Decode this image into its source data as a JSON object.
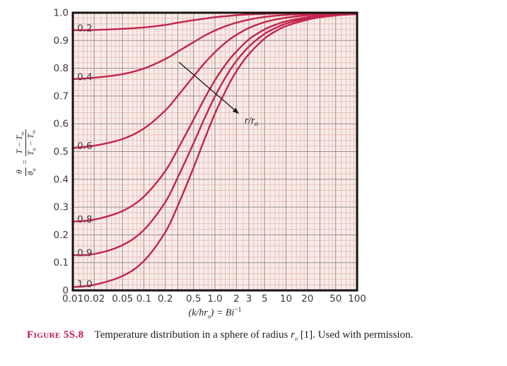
{
  "colors": {
    "curve": "#c2254e",
    "plot_bg": "#f8ece8",
    "grid_minor": "#e9c2bc",
    "grid_major": "#9d8f8c",
    "border": "#191113",
    "tick_text": "#3e3938",
    "curve_label_text": "#45403d",
    "annotation": "#1b1613",
    "figure_label": "#c2174c"
  },
  "chart_data": {
    "type": "line",
    "title": "",
    "xlabel": "(k/hr_o) = Bi^-1",
    "ylabel": "θ/θ_o = (T − T_∞)/(T_o − T_∞)",
    "x_scale": "log",
    "xlim": [
      0.01,
      100
    ],
    "ylim": [
      0,
      1
    ],
    "grid": {
      "h_minor_step": 0.02,
      "h_major_step": 0.1,
      "v_major_multipliers": [
        1,
        2,
        3,
        5
      ],
      "v_minor_multipliers": [
        1.2,
        1.4,
        1.6,
        1.8,
        2.5,
        3.5,
        4,
        4.5,
        6,
        7,
        8,
        9
      ]
    },
    "x_ticks": [
      {
        "v": 0.01,
        "label": "0.01"
      },
      {
        "v": 0.02,
        "label": "0.02"
      },
      {
        "v": 0.05,
        "label": "0.05"
      },
      {
        "v": 0.1,
        "label": "0.1"
      },
      {
        "v": 0.2,
        "label": "0.2"
      },
      {
        "v": 0.5,
        "label": "0.5"
      },
      {
        "v": 1,
        "label": "1.0"
      },
      {
        "v": 2,
        "label": "2"
      },
      {
        "v": 3,
        "label": "3"
      },
      {
        "v": 5,
        "label": "5"
      },
      {
        "v": 10,
        "label": "10"
      },
      {
        "v": 20,
        "label": "20"
      },
      {
        "v": 50,
        "label": "50"
      },
      {
        "v": 100,
        "label": "100"
      }
    ],
    "y_ticks": [
      {
        "v": 0,
        "label": "0"
      },
      {
        "v": 0.1,
        "label": "0.1"
      },
      {
        "v": 0.2,
        "label": "0.2"
      },
      {
        "v": 0.3,
        "label": "0.3"
      },
      {
        "v": 0.4,
        "label": "0.4"
      },
      {
        "v": 0.5,
        "label": "0.5"
      },
      {
        "v": 0.6,
        "label": "0.6"
      },
      {
        "v": 0.7,
        "label": "0.7"
      },
      {
        "v": 0.8,
        "label": "0.8"
      },
      {
        "v": 0.9,
        "label": "0.9"
      },
      {
        "v": 1,
        "label": "1.0"
      }
    ],
    "x": [
      0.01,
      0.02,
      0.05,
      0.1,
      0.2,
      0.3,
      0.5,
      0.7,
      1,
      1.5,
      2,
      3,
      5,
      7,
      10,
      20,
      30,
      50,
      70,
      100
    ],
    "series": [
      {
        "name": "0.2",
        "values": [
          0.937,
          0.938,
          0.942,
          0.947,
          0.956,
          0.964,
          0.973,
          0.978,
          0.984,
          0.988,
          0.991,
          0.994,
          0.996,
          0.997,
          0.998,
          0.999,
          0.9993,
          0.9996,
          0.9997,
          0.9998
        ]
      },
      {
        "name": "0.4",
        "values": [
          0.761,
          0.766,
          0.779,
          0.799,
          0.833,
          0.86,
          0.894,
          0.916,
          0.936,
          0.954,
          0.964,
          0.975,
          0.985,
          0.989,
          0.992,
          0.996,
          0.997,
          0.998,
          0.9988,
          0.9992
        ]
      },
      {
        "name": "0.6",
        "values": [
          0.513,
          0.521,
          0.545,
          0.583,
          0.648,
          0.701,
          0.771,
          0.816,
          0.858,
          0.898,
          0.92,
          0.945,
          0.966,
          0.975,
          0.982,
          0.991,
          0.994,
          0.9964,
          0.9974,
          0.9982
        ]
      },
      {
        "name": "0.8",
        "values": [
          0.248,
          0.255,
          0.286,
          0.338,
          0.43,
          0.509,
          0.615,
          0.687,
          0.757,
          0.823,
          0.86,
          0.904,
          0.94,
          0.956,
          0.969,
          0.984,
          0.9894,
          0.9936,
          0.9954,
          0.9968
        ]
      },
      {
        "name": "0.9",
        "values": [
          0.127,
          0.131,
          0.163,
          0.218,
          0.318,
          0.407,
          0.53,
          0.615,
          0.699,
          0.779,
          0.826,
          0.878,
          0.924,
          0.944,
          0.961,
          0.98,
          0.9866,
          0.9919,
          0.9942,
          0.996
        ]
      },
      {
        "name": "1.0",
        "values": [
          0.012,
          0.02,
          0.052,
          0.106,
          0.21,
          0.305,
          0.442,
          0.539,
          0.637,
          0.732,
          0.789,
          0.851,
          0.907,
          0.932,
          0.952,
          0.975,
          0.9835,
          0.99,
          0.9929,
          0.995
        ]
      }
    ],
    "series_label_x": 0.0115,
    "annotation": {
      "base": "r/r",
      "sub": "o",
      "x": 2.62,
      "y": 0.612,
      "arrow": {
        "x1": 0.311,
        "y1": 0.822,
        "x2": 2.18,
        "y2": 0.636
      }
    },
    "legend": "none"
  },
  "yaxis_title": {
    "lhs_num": "θ",
    "lhs_den": "θ",
    "lhs_den_sub": "o",
    "eq": "=",
    "rhs_num_t1": "T",
    "rhs_num_dash": " − ",
    "rhs_num_t2": "T",
    "rhs_num_t2_sub": "∞",
    "rhs_den_t1": "T",
    "rhs_den_t1_sub": "o",
    "rhs_den_dash": " − ",
    "rhs_den_t2": "T",
    "rhs_den_t2_sub": "∞"
  },
  "xaxis_title": {
    "p1": "(k/hr",
    "sub": "o",
    "p2": ") = ",
    "p3": "Bi",
    "sup": "−1"
  },
  "caption": {
    "figure_label": "Figure 5S.8",
    "text_before_math": "Temperature distribution in a sphere of radius ",
    "math_base": "r",
    "math_sub": "o",
    "text_after_math": " [1]. Used with permission."
  }
}
